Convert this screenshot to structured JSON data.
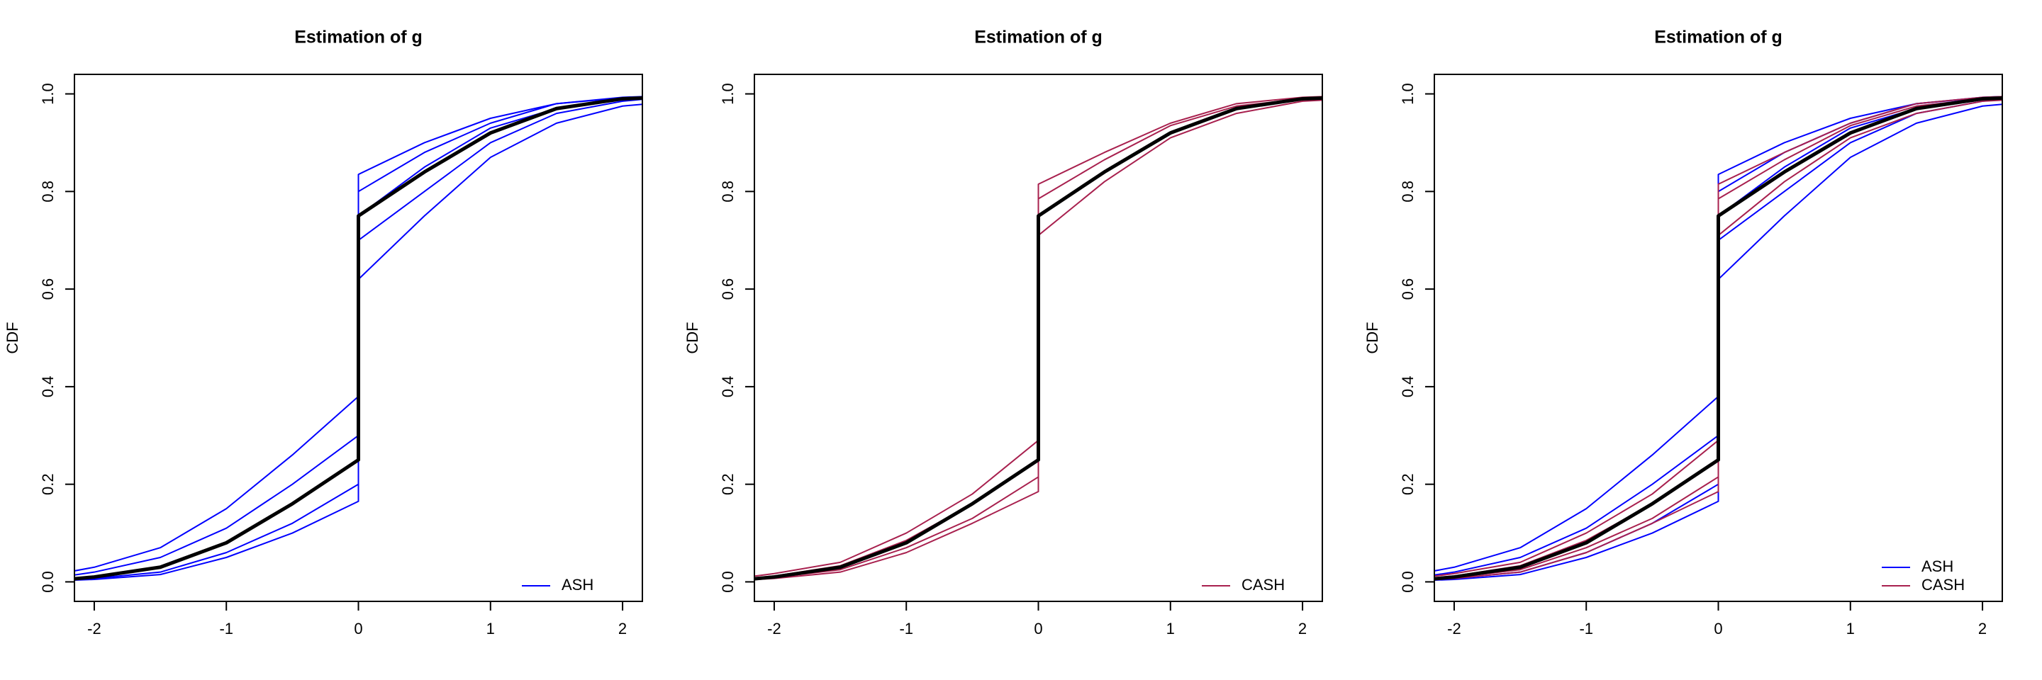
{
  "chart_data": [
    {
      "type": "line",
      "title": "Estimation of g",
      "ylabel": "CDF",
      "legend": "bottom-right",
      "x": [
        -2.2,
        -2,
        -1.5,
        -1,
        -0.5,
        0,
        0,
        0.5,
        1,
        1.5,
        2,
        2.2
      ],
      "xlim": [
        -2.15,
        2.15
      ],
      "xticks": [
        -2,
        -1,
        0,
        1,
        2
      ],
      "ylim": [
        -0.04,
        1.04
      ],
      "yticks": [
        {
          "value": 0,
          "label": "0.0"
        },
        0.2,
        0.4,
        0.6,
        0.8,
        {
          "value": 1,
          "label": "1.0"
        }
      ],
      "series": [
        {
          "name": "ASH",
          "color": "#0000ff",
          "values": [
            [
              0.02,
              0.03,
              0.07,
              0.15,
              0.26,
              0.38,
              0.62,
              0.75,
              0.87,
              0.94,
              0.975,
              0.98
            ],
            [
              0.012,
              0.02,
              0.05,
              0.11,
              0.2,
              0.3,
              0.7,
              0.8,
              0.9,
              0.96,
              0.985,
              0.99
            ],
            [
              0.006,
              0.01,
              0.03,
              0.08,
              0.16,
              0.25,
              0.75,
              0.85,
              0.93,
              0.97,
              0.99,
              0.992
            ],
            [
              0.004,
              0.007,
              0.02,
              0.06,
              0.12,
              0.2,
              0.8,
              0.88,
              0.94,
              0.98,
              0.992,
              0.994
            ],
            [
              0.003,
              0.005,
              0.015,
              0.05,
              0.1,
              0.165,
              0.835,
              0.9,
              0.95,
              0.98,
              0.993,
              0.995
            ]
          ]
        }
      ],
      "truth": {
        "color": "#000000",
        "values": [
          0.005,
          0.01,
          0.03,
          0.08,
          0.16,
          0.25,
          0.75,
          0.84,
          0.92,
          0.97,
          0.99,
          0.992
        ]
      }
    },
    {
      "type": "line",
      "title": "Estimation of g",
      "ylabel": "CDF",
      "legend": "bottom-right",
      "x": [
        -2.2,
        -2,
        -1.5,
        -1,
        -0.5,
        0,
        0,
        0.5,
        1,
        1.5,
        2,
        2.2
      ],
      "xlim": [
        -2.15,
        2.15
      ],
      "xticks": [
        -2,
        -1,
        0,
        1,
        2
      ],
      "ylim": [
        -0.04,
        1.04
      ],
      "yticks": [
        {
          "value": 0,
          "label": "0.0"
        },
        0.2,
        0.4,
        0.6,
        0.8,
        {
          "value": 1,
          "label": "1.0"
        }
      ],
      "series": [
        {
          "name": "CASH",
          "color": "#a8204e",
          "values": [
            [
              0.01,
              0.017,
              0.04,
              0.1,
              0.18,
              0.29,
              0.71,
              0.82,
              0.91,
              0.96,
              0.985,
              0.988
            ],
            [
              0.007,
              0.012,
              0.033,
              0.085,
              0.16,
              0.25,
              0.75,
              0.84,
              0.92,
              0.97,
              0.99,
              0.992
            ],
            [
              0.005,
              0.009,
              0.025,
              0.07,
              0.13,
              0.215,
              0.785,
              0.865,
              0.935,
              0.975,
              0.99,
              0.993
            ],
            [
              0.004,
              0.007,
              0.02,
              0.06,
              0.12,
              0.185,
              0.815,
              0.88,
              0.94,
              0.98,
              0.993,
              0.995
            ]
          ]
        }
      ],
      "truth": {
        "color": "#000000",
        "values": [
          0.005,
          0.01,
          0.03,
          0.08,
          0.16,
          0.25,
          0.75,
          0.84,
          0.92,
          0.97,
          0.99,
          0.992
        ]
      }
    },
    {
      "type": "line",
      "title": "Estimation of g",
      "ylabel": "CDF",
      "legend": "bottom-right",
      "x": [
        -2.2,
        -2,
        -1.5,
        -1,
        -0.5,
        0,
        0,
        0.5,
        1,
        1.5,
        2,
        2.2
      ],
      "xlim": [
        -2.15,
        2.15
      ],
      "xticks": [
        -2,
        -1,
        0,
        1,
        2
      ],
      "ylim": [
        -0.04,
        1.04
      ],
      "yticks": [
        {
          "value": 0,
          "label": "0.0"
        },
        0.2,
        0.4,
        0.6,
        0.8,
        {
          "value": 1,
          "label": "1.0"
        }
      ],
      "series": [
        {
          "name": "ASH",
          "color": "#0000ff",
          "values": [
            [
              0.02,
              0.03,
              0.07,
              0.15,
              0.26,
              0.38,
              0.62,
              0.75,
              0.87,
              0.94,
              0.975,
              0.98
            ],
            [
              0.012,
              0.02,
              0.05,
              0.11,
              0.2,
              0.3,
              0.7,
              0.8,
              0.9,
              0.96,
              0.985,
              0.99
            ],
            [
              0.006,
              0.01,
              0.03,
              0.08,
              0.16,
              0.25,
              0.75,
              0.85,
              0.93,
              0.97,
              0.99,
              0.992
            ],
            [
              0.004,
              0.007,
              0.02,
              0.06,
              0.12,
              0.2,
              0.8,
              0.88,
              0.94,
              0.98,
              0.992,
              0.994
            ],
            [
              0.003,
              0.005,
              0.015,
              0.05,
              0.1,
              0.165,
              0.835,
              0.9,
              0.95,
              0.98,
              0.993,
              0.995
            ]
          ]
        },
        {
          "name": "CASH",
          "color": "#a8204e",
          "values": [
            [
              0.01,
              0.017,
              0.04,
              0.1,
              0.18,
              0.29,
              0.71,
              0.82,
              0.91,
              0.96,
              0.985,
              0.988
            ],
            [
              0.007,
              0.012,
              0.033,
              0.085,
              0.16,
              0.25,
              0.75,
              0.84,
              0.92,
              0.97,
              0.99,
              0.992
            ],
            [
              0.005,
              0.009,
              0.025,
              0.07,
              0.13,
              0.215,
              0.785,
              0.865,
              0.935,
              0.975,
              0.99,
              0.993
            ],
            [
              0.004,
              0.007,
              0.02,
              0.06,
              0.12,
              0.185,
              0.815,
              0.88,
              0.94,
              0.98,
              0.993,
              0.995
            ]
          ]
        }
      ],
      "truth": {
        "color": "#000000",
        "values": [
          0.005,
          0.01,
          0.03,
          0.08,
          0.16,
          0.25,
          0.75,
          0.84,
          0.92,
          0.97,
          0.99,
          0.992
        ]
      }
    }
  ]
}
